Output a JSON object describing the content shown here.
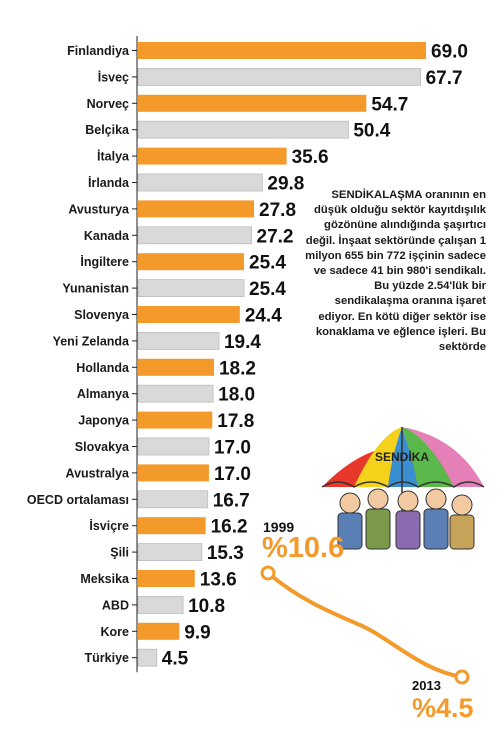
{
  "chart_data": {
    "type": "bar",
    "orientation": "horizontal",
    "categories": [
      "Finlandiya",
      "İsveç",
      "Norveç",
      "Belçika",
      "İtalya",
      "İrlanda",
      "Avusturya",
      "Kanada",
      "İngiltere",
      "Yunanistan",
      "Slovenya",
      "Yeni Zelanda",
      "Hollanda",
      "Almanya",
      "Japonya",
      "Slovakya",
      "Avustralya",
      "OECD ortalaması",
      "İsviçre",
      "Şili",
      "Meksika",
      "ABD",
      "Kore",
      "Türkiye"
    ],
    "values": [
      69.0,
      67.7,
      54.7,
      50.4,
      35.6,
      29.8,
      27.8,
      27.2,
      25.4,
      25.4,
      24.4,
      19.4,
      18.2,
      18.0,
      17.8,
      17.0,
      17.0,
      16.7,
      16.2,
      15.3,
      13.6,
      10.8,
      9.9,
      4.5
    ],
    "value_labels": [
      "69.0",
      "67.7",
      "54.7",
      "50.4",
      "35.6",
      "29.8",
      "27.8",
      "27.2",
      "25.4",
      "25.4",
      "24.4",
      "19.4",
      "18.2",
      "18.0",
      "17.8",
      "17.0",
      "17.0",
      "16.7",
      "16.2",
      "15.3",
      "13.6",
      "10.8",
      "9.9",
      "4.5"
    ],
    "colors": {
      "highlight": "#f39a2b",
      "default": "#d9d9d9",
      "bar_stroke": "#bdbdbd"
    },
    "xlim": [
      0,
      69
    ],
    "grid": false,
    "legend": "none",
    "xlabel": "",
    "ylabel": "",
    "title": ""
  },
  "annotation": {
    "lead": "SENDİKALAŞMA",
    "text": " oranının en düşük olduğu sektör kayıtdışılık gözönüne alındığında şaşırtıcı değil. İnşaat sektöründe çalışan 1 milyon 655 bin 772 işçinin sadece ve sadece 41 bin 980'i sendikalı. Bu yüzde 2.54'lük bir sendikalaşma oranına işaret ediyor. En kötü diğer sektör ise konaklama ve eğlence işleri. Bu sektörde"
  },
  "illustration": {
    "umbrella_text": "SENDİKA",
    "umbrella_colors": [
      "#e8372b",
      "#f4d21c",
      "#3a8fd0",
      "#5bb84b",
      "#e57fb8"
    ]
  },
  "trend": {
    "start_year": "1999",
    "start_value": "%10.6",
    "end_year": "2013",
    "end_value": "%4.5",
    "color": "#f39a2b"
  }
}
